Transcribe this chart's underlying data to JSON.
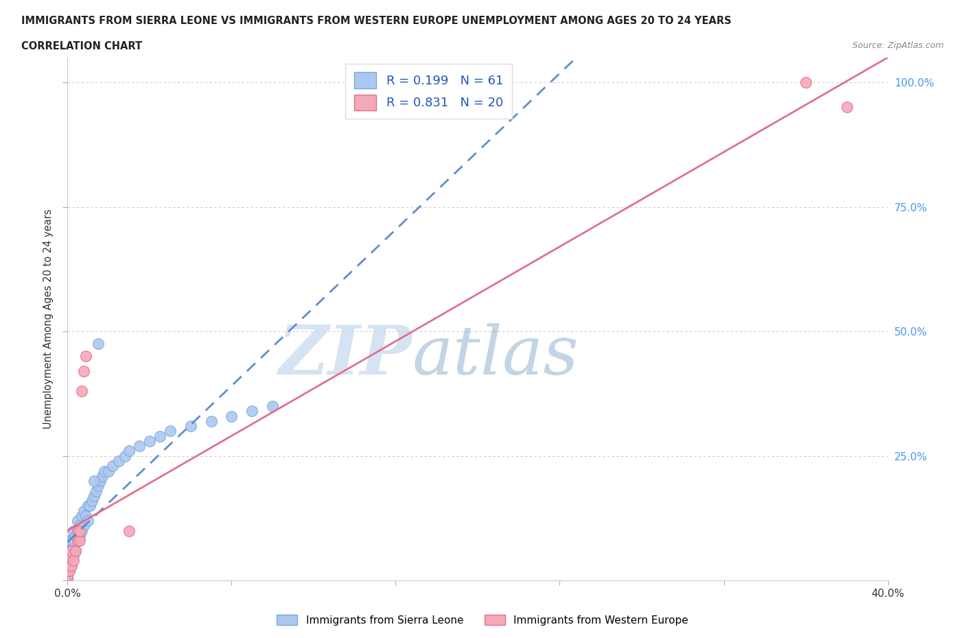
{
  "title_line1": "IMMIGRANTS FROM SIERRA LEONE VS IMMIGRANTS FROM WESTERN EUROPE UNEMPLOYMENT AMONG AGES 20 TO 24 YEARS",
  "title_line2": "CORRELATION CHART",
  "source_text": "Source: ZipAtlas.com",
  "ylabel": "Unemployment Among Ages 20 to 24 years",
  "xlim": [
    0.0,
    0.4
  ],
  "ylim": [
    0.0,
    1.05
  ],
  "sierra_leone_color": "#adc8f0",
  "sierra_leone_edge": "#7aaad8",
  "western_europe_color": "#f5a8b8",
  "western_europe_edge": "#e07090",
  "sierra_leone_R": 0.199,
  "sierra_leone_N": 61,
  "western_europe_R": 0.831,
  "western_europe_N": 20,
  "trend_sierra_leone_color": "#5588cc",
  "trend_western_europe_color": "#e06888",
  "watermark_zip_color": "#c5d8ee",
  "watermark_atlas_color": "#88aacc",
  "background_color": "#ffffff",
  "grid_color": "#cccccc",
  "sl_x": [
    0.0,
    0.0,
    0.0,
    0.0,
    0.0,
    0.0,
    0.0,
    0.0,
    0.0,
    0.0,
    0.0,
    0.0,
    0.001,
    0.001,
    0.001,
    0.001,
    0.001,
    0.002,
    0.002,
    0.002,
    0.003,
    0.003,
    0.003,
    0.004,
    0.004,
    0.005,
    0.005,
    0.005,
    0.006,
    0.006,
    0.007,
    0.007,
    0.008,
    0.008,
    0.009,
    0.01,
    0.01,
    0.011,
    0.012,
    0.013,
    0.014,
    0.015,
    0.016,
    0.017,
    0.018,
    0.02,
    0.022,
    0.025,
    0.028,
    0.03,
    0.035,
    0.04,
    0.045,
    0.05,
    0.06,
    0.07,
    0.08,
    0.09,
    0.1,
    0.015,
    0.013
  ],
  "sl_y": [
    0.0,
    0.0,
    0.0,
    0.0,
    0.0,
    0.005,
    0.01,
    0.015,
    0.02,
    0.025,
    0.03,
    0.04,
    0.02,
    0.03,
    0.05,
    0.06,
    0.08,
    0.03,
    0.06,
    0.08,
    0.05,
    0.08,
    0.1,
    0.06,
    0.09,
    0.08,
    0.1,
    0.12,
    0.09,
    0.11,
    0.1,
    0.13,
    0.11,
    0.14,
    0.13,
    0.12,
    0.15,
    0.15,
    0.16,
    0.17,
    0.18,
    0.19,
    0.2,
    0.21,
    0.22,
    0.22,
    0.23,
    0.24,
    0.25,
    0.26,
    0.27,
    0.28,
    0.29,
    0.3,
    0.31,
    0.32,
    0.33,
    0.34,
    0.35,
    0.475,
    0.2
  ],
  "we_x": [
    0.0,
    0.0,
    0.0,
    0.0,
    0.001,
    0.001,
    0.002,
    0.002,
    0.003,
    0.004,
    0.005,
    0.005,
    0.006,
    0.006,
    0.007,
    0.008,
    0.009,
    0.03,
    0.36,
    0.38
  ],
  "we_y": [
    0.0,
    0.01,
    0.02,
    0.03,
    0.02,
    0.05,
    0.03,
    0.06,
    0.04,
    0.06,
    0.08,
    0.1,
    0.08,
    0.1,
    0.38,
    0.42,
    0.45,
    0.1,
    1.0,
    0.95
  ],
  "legend_color": "#2255bb"
}
